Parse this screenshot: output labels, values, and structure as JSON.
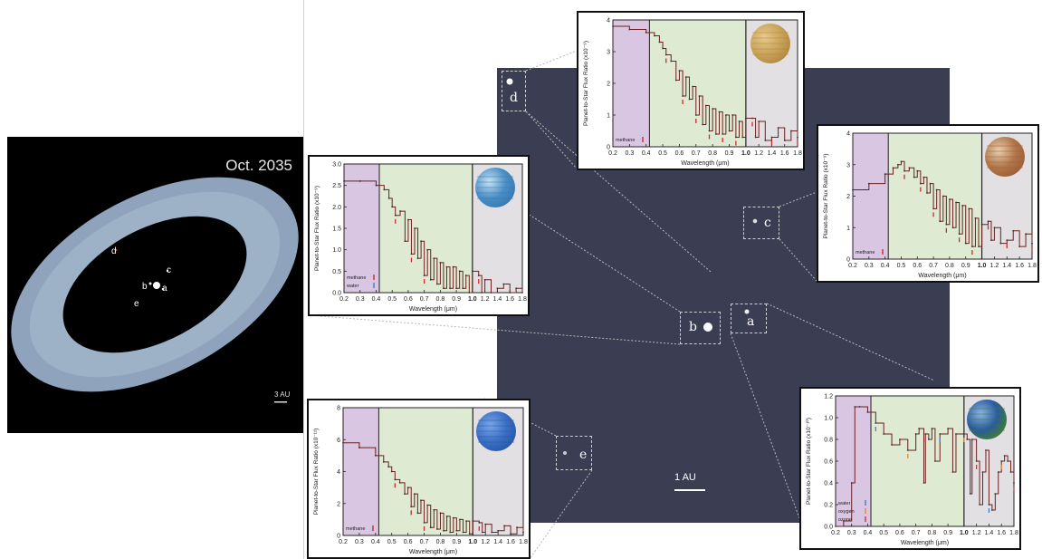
{
  "overview": {
    "date": "Oct. 2035",
    "scale_label": "3 AU",
    "planets": [
      "d",
      "c",
      "b",
      "a",
      "e"
    ]
  },
  "field": {
    "scale_label": "1 AU",
    "planets": [
      "d",
      "c",
      "b",
      "a",
      "e"
    ]
  },
  "colors": {
    "uv_band": "#d9c6e2",
    "visible_band": "#dfead2",
    "ir_band": "#e3e0e3",
    "spectrum_line": "#6b1f1f",
    "methane_mark": "#cc2a2a",
    "water_mark": "#3a7fd0",
    "oxygen_mark": "#e08a1f",
    "ozone_mark": "#c23b3b"
  },
  "chart_data": [
    {
      "type": "line",
      "panel": "d",
      "xlabel": "Wavelength (μm)",
      "ylabel": "Planet-to-Star Flux Ratio (x10⁻⁹)",
      "xlim": [
        0.2,
        1.8
      ],
      "ylim": [
        0,
        4
      ],
      "yticks": [
        "0",
        "1",
        "2",
        "3",
        "4"
      ],
      "xticks": [
        "0.2",
        "0.3",
        "0.4",
        "0.5",
        "0.6",
        "0.7",
        "0.8",
        "0.9",
        "1.0",
        "1.2",
        "1.4",
        "1.6",
        "1.8"
      ],
      "legend": [
        "methane"
      ],
      "x": [
        0.2,
        0.3,
        0.4,
        0.45,
        0.48,
        0.5,
        0.52,
        0.55,
        0.58,
        0.6,
        0.62,
        0.64,
        0.66,
        0.68,
        0.7,
        0.72,
        0.74,
        0.76,
        0.78,
        0.8,
        0.82,
        0.84,
        0.86,
        0.88,
        0.9,
        0.92,
        0.94,
        0.96,
        0.98,
        1.0,
        1.1,
        1.15,
        1.2,
        1.3,
        1.4,
        1.5,
        1.6,
        1.7,
        1.8
      ],
      "y": [
        3.8,
        3.7,
        3.6,
        3.5,
        3.3,
        3.1,
        2.9,
        2.7,
        2.1,
        2.4,
        1.6,
        2.2,
        1.5,
        1.9,
        1.0,
        1.6,
        0.7,
        1.3,
        0.5,
        1.2,
        0.4,
        1.1,
        0.4,
        1.0,
        0.5,
        1.0,
        0.3,
        0.8,
        0.3,
        0.9,
        0.9,
        0.3,
        0.8,
        0.2,
        0.3,
        0.6,
        0.2,
        0.5,
        0.3
      ]
    },
    {
      "type": "line",
      "panel": "c",
      "xlabel": "Wavelength (μm)",
      "ylabel": "Planet-to-Star Flux Ratio (x10⁻⁹)",
      "xlim": [
        0.2,
        1.8
      ],
      "ylim": [
        0,
        4
      ],
      "yticks": [
        "0",
        "1",
        "2",
        "3",
        "4"
      ],
      "xticks": [
        "0.2",
        "0.3",
        "0.4",
        "0.5",
        "0.6",
        "0.7",
        "0.8",
        "0.9",
        "1.0",
        "1.2",
        "1.4",
        "1.6",
        "1.8"
      ],
      "legend": [
        "methane"
      ],
      "x": [
        0.2,
        0.3,
        0.4,
        0.45,
        0.48,
        0.5,
        0.52,
        0.55,
        0.58,
        0.6,
        0.62,
        0.64,
        0.66,
        0.68,
        0.7,
        0.72,
        0.74,
        0.76,
        0.78,
        0.8,
        0.82,
        0.84,
        0.86,
        0.88,
        0.9,
        0.92,
        0.94,
        0.96,
        0.98,
        1.0,
        1.1,
        1.15,
        1.2,
        1.3,
        1.4,
        1.5,
        1.6,
        1.7,
        1.8
      ],
      "y": [
        2.2,
        2.4,
        2.7,
        2.9,
        3.0,
        3.1,
        2.8,
        2.9,
        2.6,
        2.8,
        2.4,
        2.6,
        2.1,
        2.4,
        1.6,
        2.2,
        1.2,
        2.0,
        1.1,
        1.9,
        1.0,
        1.8,
        0.8,
        1.7,
        0.5,
        1.6,
        0.4,
        1.3,
        0.4,
        1.1,
        1.2,
        0.6,
        1.0,
        0.5,
        0.6,
        0.9,
        0.4,
        0.8,
        0.5
      ]
    },
    {
      "type": "line",
      "panel": "b",
      "xlabel": "Wavelength (μm)",
      "ylabel": "Planet-to-Star Flux Ratio (x10⁻⁹)",
      "xlim": [
        0.2,
        1.8
      ],
      "ylim": [
        0,
        3
      ],
      "yticks": [
        "0.0",
        "0.5",
        "1.0",
        "1.5",
        "2.0",
        "2.5",
        "3.0"
      ],
      "xticks": [
        "0.2",
        "0.3",
        "0.4",
        "0.5",
        "0.6",
        "0.7",
        "0.8",
        "0.9",
        "1.0",
        "1.2",
        "1.4",
        "1.6",
        "1.8"
      ],
      "legend": [
        "methane",
        "water"
      ],
      "x": [
        0.2,
        0.3,
        0.4,
        0.45,
        0.48,
        0.5,
        0.52,
        0.55,
        0.58,
        0.6,
        0.62,
        0.64,
        0.66,
        0.68,
        0.7,
        0.72,
        0.74,
        0.76,
        0.78,
        0.8,
        0.82,
        0.84,
        0.86,
        0.88,
        0.9,
        0.92,
        0.94,
        0.96,
        0.98,
        1.0,
        1.1,
        1.15,
        1.2,
        1.3,
        1.4,
        1.5,
        1.6,
        1.7,
        1.8
      ],
      "y": [
        2.6,
        2.6,
        2.5,
        2.4,
        2.2,
        2.0,
        1.8,
        1.9,
        1.2,
        1.7,
        0.9,
        1.5,
        0.8,
        1.2,
        0.4,
        1.0,
        0.3,
        0.8,
        0.2,
        0.7,
        0.1,
        0.6,
        0.1,
        0.6,
        0.1,
        0.5,
        0.1,
        0.4,
        0.0,
        0.5,
        0.4,
        0.0,
        0.3,
        0.0,
        0.1,
        0.2,
        0.0,
        0.1,
        0.0
      ]
    },
    {
      "type": "line",
      "panel": "e",
      "xlabel": "Wavelength (μm)",
      "ylabel": "Planet-to-Star Flux Ratio (x10⁻¹¹)",
      "xlim": [
        0.2,
        1.8
      ],
      "ylim": [
        0,
        8
      ],
      "yticks": [
        "0",
        "2",
        "4",
        "6",
        "8"
      ],
      "xticks": [
        "0.2",
        "0.3",
        "0.4",
        "0.5",
        "0.6",
        "0.7",
        "0.8",
        "0.9",
        "1.0",
        "1.2",
        "1.4",
        "1.6",
        "1.8"
      ],
      "legend": [
        "methane"
      ],
      "x": [
        0.2,
        0.3,
        0.4,
        0.45,
        0.48,
        0.5,
        0.52,
        0.55,
        0.58,
        0.6,
        0.62,
        0.64,
        0.66,
        0.68,
        0.7,
        0.72,
        0.74,
        0.76,
        0.78,
        0.8,
        0.82,
        0.84,
        0.86,
        0.88,
        0.9,
        0.92,
        0.94,
        0.96,
        0.98,
        1.0,
        1.1,
        1.15,
        1.2,
        1.3,
        1.4,
        1.5,
        1.6,
        1.7,
        1.8
      ],
      "y": [
        5.8,
        5.5,
        5.0,
        4.6,
        4.3,
        4.0,
        3.5,
        3.3,
        2.6,
        3.0,
        1.8,
        2.6,
        1.4,
        2.2,
        0.8,
        1.9,
        0.5,
        1.6,
        0.4,
        1.4,
        0.3,
        1.2,
        0.2,
        1.1,
        0.3,
        1.0,
        0.2,
        0.9,
        0.1,
        0.9,
        0.8,
        0.2,
        0.7,
        0.2,
        0.3,
        0.6,
        0.1,
        0.5,
        0.2
      ]
    },
    {
      "type": "line",
      "panel": "a",
      "xlabel": "Wavelength (μm)",
      "ylabel": "Planet-to-Star Flux Ratio (x10⁻¹⁰)",
      "xlim": [
        0.2,
        1.8
      ],
      "ylim": [
        0,
        1.2
      ],
      "yticks": [
        "0.0",
        "0.2",
        "0.4",
        "0.6",
        "0.8",
        "1.0",
        "1.2"
      ],
      "xticks": [
        "0.2",
        "0.3",
        "0.4",
        "0.5",
        "0.6",
        "0.7",
        "0.8",
        "0.9",
        "1.0",
        "1.2",
        "1.4",
        "1.6",
        "1.8"
      ],
      "legend": [
        "water",
        "oxygen",
        "ozone"
      ],
      "x": [
        0.2,
        0.25,
        0.3,
        0.32,
        0.35,
        0.4,
        0.45,
        0.5,
        0.55,
        0.6,
        0.65,
        0.7,
        0.72,
        0.75,
        0.76,
        0.78,
        0.8,
        0.82,
        0.85,
        0.9,
        0.93,
        0.95,
        1.0,
        1.05,
        1.1,
        1.13,
        1.2,
        1.25,
        1.3,
        1.35,
        1.4,
        1.45,
        1.5,
        1.55,
        1.6,
        1.65,
        1.7,
        1.75,
        1.8
      ],
      "y": [
        0.0,
        0.05,
        0.4,
        1.1,
        1.1,
        1.05,
        0.95,
        0.85,
        0.75,
        0.8,
        0.7,
        0.85,
        0.9,
        0.4,
        0.85,
        0.8,
        0.9,
        0.6,
        0.85,
        0.9,
        0.5,
        0.85,
        0.85,
        0.8,
        0.3,
        0.8,
        0.6,
        0.2,
        0.5,
        0.7,
        0.2,
        0.15,
        0.3,
        0.5,
        0.6,
        0.65,
        0.6,
        0.5,
        0.4
      ]
    }
  ]
}
